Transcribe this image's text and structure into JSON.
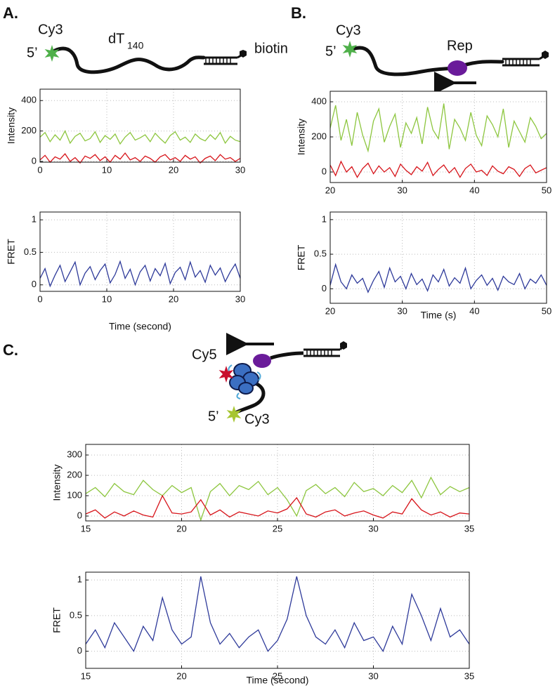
{
  "panel_labels": [
    "A.",
    "B.",
    "C."
  ],
  "diagram_a": {
    "dye": "Cy3",
    "end": "5’",
    "strand": "dT",
    "strand_subscript": "140",
    "tag": "biotin"
  },
  "diagram_b": {
    "dye": "Cy3",
    "end": "5’",
    "protein": "Rep"
  },
  "diagram_c": {
    "acceptor": "Cy5",
    "end": "5’",
    "donor": "Cy3"
  },
  "chart_data": [
    {
      "type": "line",
      "ylabel": "Intensity",
      "x": [
        0,
        0.75,
        1.5,
        2.25,
        3,
        3.75,
        4.5,
        5.25,
        6,
        6.75,
        7.5,
        8.25,
        9,
        9.75,
        10.5,
        11.25,
        12,
        12.75,
        13.5,
        14.25,
        15,
        15.75,
        16.5,
        17.25,
        18,
        18.75,
        19.5,
        20.25,
        21,
        21.75,
        22.5,
        23.25,
        24,
        24.75,
        25.5,
        26.25,
        27,
        27.75,
        28.5,
        29.25,
        30
      ],
      "xlim": [
        0,
        30
      ],
      "xticks": [
        0,
        10,
        20,
        30
      ],
      "ylim": [
        -5,
        475
      ],
      "yticks": [
        0,
        200,
        400
      ],
      "grid": true,
      "series": [
        {
          "color": "#8dc63f",
          "values": [
            160,
            190,
            130,
            175,
            140,
            200,
            120,
            165,
            185,
            135,
            150,
            195,
            125,
            170,
            145,
            180,
            115,
            160,
            190,
            140,
            155,
            175,
            130,
            185,
            150,
            120,
            170,
            195,
            140,
            160,
            125,
            180,
            150,
            135,
            175,
            145,
            190,
            120,
            165,
            140,
            130
          ]
        },
        {
          "color": "#d7141a",
          "values": [
            10,
            40,
            -5,
            30,
            15,
            50,
            0,
            25,
            -10,
            35,
            20,
            45,
            5,
            30,
            -5,
            40,
            15,
            55,
            10,
            25,
            0,
            35,
            20,
            -5,
            30,
            45,
            10,
            25,
            0,
            40,
            15,
            30,
            -10,
            20,
            35,
            5,
            45,
            15,
            25,
            0,
            20
          ]
        }
      ]
    },
    {
      "type": "line",
      "ylabel": "FRET",
      "xlabel": "Time (second)",
      "x": [
        0,
        0.75,
        1.5,
        2.25,
        3,
        3.75,
        4.5,
        5.25,
        6,
        6.75,
        7.5,
        8.25,
        9,
        9.75,
        10.5,
        11.25,
        12,
        12.75,
        13.5,
        14.25,
        15,
        15.75,
        16.5,
        17.25,
        18,
        18.75,
        19.5,
        20.25,
        21,
        21.75,
        22.5,
        23.25,
        24,
        24.75,
        25.5,
        26.25,
        27,
        27.75,
        28.5,
        29.25,
        30
      ],
      "xlim": [
        0,
        30
      ],
      "xticks": [
        0,
        10,
        20,
        30
      ],
      "ylim": [
        -0.1,
        1.12
      ],
      "yticks": [
        0,
        0.5,
        1
      ],
      "grid": true,
      "series": [
        {
          "color": "#2e3a9a",
          "values": [
            0.1,
            0.25,
            -0.02,
            0.15,
            0.3,
            0.05,
            0.2,
            0.35,
            0.0,
            0.18,
            0.28,
            0.08,
            0.22,
            0.32,
            0.03,
            0.16,
            0.36,
            0.1,
            0.24,
            0.0,
            0.2,
            0.3,
            0.06,
            0.25,
            0.14,
            0.33,
            0.02,
            0.19,
            0.27,
            0.08,
            0.35,
            0.12,
            0.22,
            0.04,
            0.3,
            0.15,
            0.26,
            0.05,
            0.2,
            0.32,
            0.1
          ]
        }
      ]
    },
    {
      "type": "line",
      "ylabel": "Intensity",
      "x": [
        20,
        20.75,
        21.5,
        22.25,
        23,
        23.75,
        24.5,
        25.25,
        26,
        26.75,
        27.5,
        28.25,
        29,
        29.75,
        30.5,
        31.25,
        32,
        32.75,
        33.5,
        34.25,
        35,
        35.75,
        36.5,
        37.25,
        38,
        38.75,
        39.5,
        40.25,
        41,
        41.75,
        42.5,
        43.25,
        44,
        44.75,
        45.5,
        46.25,
        47,
        47.75,
        48.5,
        49.25,
        50
      ],
      "xlim": [
        20,
        50
      ],
      "xticks": [
        20,
        30,
        40,
        50
      ],
      "ylim": [
        -60,
        460
      ],
      "yticks": [
        0,
        200,
        400
      ],
      "grid": true,
      "series": [
        {
          "color": "#8dc63f",
          "values": [
            250,
            380,
            180,
            300,
            150,
            340,
            210,
            120,
            290,
            360,
            170,
            260,
            330,
            140,
            280,
            220,
            310,
            160,
            370,
            240,
            190,
            390,
            130,
            300,
            250,
            180,
            340,
            210,
            150,
            320,
            270,
            200,
            360,
            140,
            290,
            230,
            170,
            310,
            260,
            190,
            220
          ]
        },
        {
          "color": "#d7141a",
          "values": [
            40,
            -20,
            60,
            0,
            30,
            -30,
            20,
            50,
            -10,
            35,
            0,
            25,
            -25,
            45,
            10,
            -15,
            30,
            5,
            55,
            -20,
            15,
            40,
            -5,
            25,
            -30,
            20,
            45,
            0,
            10,
            -20,
            35,
            5,
            -10,
            30,
            15,
            -25,
            20,
            40,
            -5,
            10,
            25
          ]
        }
      ]
    },
    {
      "type": "line",
      "ylabel": "FRET",
      "xlabel": "Time (s)",
      "x": [
        20,
        20.75,
        21.5,
        22.25,
        23,
        23.75,
        24.5,
        25.25,
        26,
        26.75,
        27.5,
        28.25,
        29,
        29.75,
        30.5,
        31.25,
        32,
        32.75,
        33.5,
        34.25,
        35,
        35.75,
        36.5,
        37.25,
        38,
        38.75,
        39.5,
        40.25,
        41,
        41.75,
        42.5,
        43.25,
        44,
        44.75,
        45.5,
        46.25,
        47,
        47.75,
        48.5,
        49.25,
        50
      ],
      "xlim": [
        20,
        50
      ],
      "xticks": [
        20,
        30,
        40,
        50
      ],
      "ylim": [
        -0.21,
        1.11
      ],
      "yticks": [
        0,
        0.5,
        1
      ],
      "grid": true,
      "series": [
        {
          "color": "#2e3a9a",
          "values": [
            0.05,
            0.35,
            0.1,
            0.0,
            0.2,
            0.08,
            0.15,
            -0.05,
            0.12,
            0.25,
            0.02,
            0.3,
            0.1,
            0.18,
            0.0,
            0.22,
            0.06,
            0.14,
            -0.03,
            0.2,
            0.1,
            0.28,
            0.04,
            0.16,
            0.08,
            0.3,
            0.0,
            0.12,
            0.2,
            0.05,
            0.15,
            -0.02,
            0.18,
            0.1,
            0.06,
            0.22,
            0.0,
            0.14,
            0.08,
            0.2,
            0.05
          ]
        }
      ]
    },
    {
      "type": "line",
      "ylabel": "Intensity",
      "x": [
        15,
        15.5,
        16,
        16.5,
        17,
        17.5,
        18,
        18.5,
        19,
        19.5,
        20,
        20.5,
        21,
        21.5,
        22,
        22.5,
        23,
        23.5,
        24,
        24.5,
        25,
        25.5,
        26,
        26.5,
        27,
        27.5,
        28,
        28.5,
        29,
        29.5,
        30,
        30.5,
        31,
        31.5,
        32,
        32.5,
        33,
        33.5,
        34,
        34.5,
        35
      ],
      "xlim": [
        15,
        35
      ],
      "xticks": [
        15,
        20,
        25,
        30,
        35
      ],
      "ylim": [
        -24,
        352
      ],
      "yticks": [
        0,
        100,
        200,
        300
      ],
      "grid": true,
      "series": [
        {
          "color": "#8dc63f",
          "values": [
            110,
            140,
            95,
            160,
            120,
            105,
            175,
            130,
            100,
            150,
            115,
            140,
            -20,
            120,
            160,
            100,
            150,
            130,
            170,
            105,
            140,
            80,
            0,
            125,
            155,
            110,
            140,
            95,
            165,
            120,
            135,
            100,
            150,
            115,
            175,
            90,
            190,
            105,
            145,
            120,
            140
          ]
        },
        {
          "color": "#d7141a",
          "values": [
            10,
            30,
            -10,
            20,
            0,
            25,
            5,
            -5,
            100,
            15,
            10,
            20,
            80,
            5,
            30,
            -5,
            20,
            10,
            0,
            25,
            15,
            35,
            90,
            10,
            -5,
            20,
            30,
            0,
            15,
            25,
            5,
            -10,
            20,
            10,
            85,
            30,
            5,
            20,
            -5,
            15,
            10
          ]
        }
      ]
    },
    {
      "type": "line",
      "ylabel": "FRET",
      "xlabel": "Time (second)",
      "x": [
        15,
        15.5,
        16,
        16.5,
        17,
        17.5,
        18,
        18.5,
        19,
        19.5,
        20,
        20.5,
        21,
        21.5,
        22,
        22.5,
        23,
        23.5,
        24,
        24.5,
        25,
        25.5,
        26,
        26.5,
        27,
        27.5,
        28,
        28.5,
        29,
        29.5,
        30,
        30.5,
        31,
        31.5,
        32,
        32.5,
        33,
        33.5,
        34,
        34.5,
        35
      ],
      "xlim": [
        15,
        35
      ],
      "xticks": [
        15,
        20,
        25,
        30,
        35
      ],
      "ylim": [
        -0.24,
        1.11
      ],
      "yticks": [
        0,
        0.5,
        1
      ],
      "grid": true,
      "series": [
        {
          "color": "#2e3a9a",
          "values": [
            0.1,
            0.3,
            0.05,
            0.4,
            0.2,
            0.0,
            0.35,
            0.15,
            0.75,
            0.3,
            0.1,
            0.2,
            1.05,
            0.4,
            0.1,
            0.25,
            0.05,
            0.2,
            0.3,
            0.0,
            0.15,
            0.45,
            1.05,
            0.5,
            0.2,
            0.1,
            0.3,
            0.05,
            0.4,
            0.15,
            0.2,
            0.0,
            0.35,
            0.1,
            0.8,
            0.5,
            0.15,
            0.6,
            0.2,
            0.3,
            0.1
          ]
        }
      ]
    }
  ]
}
